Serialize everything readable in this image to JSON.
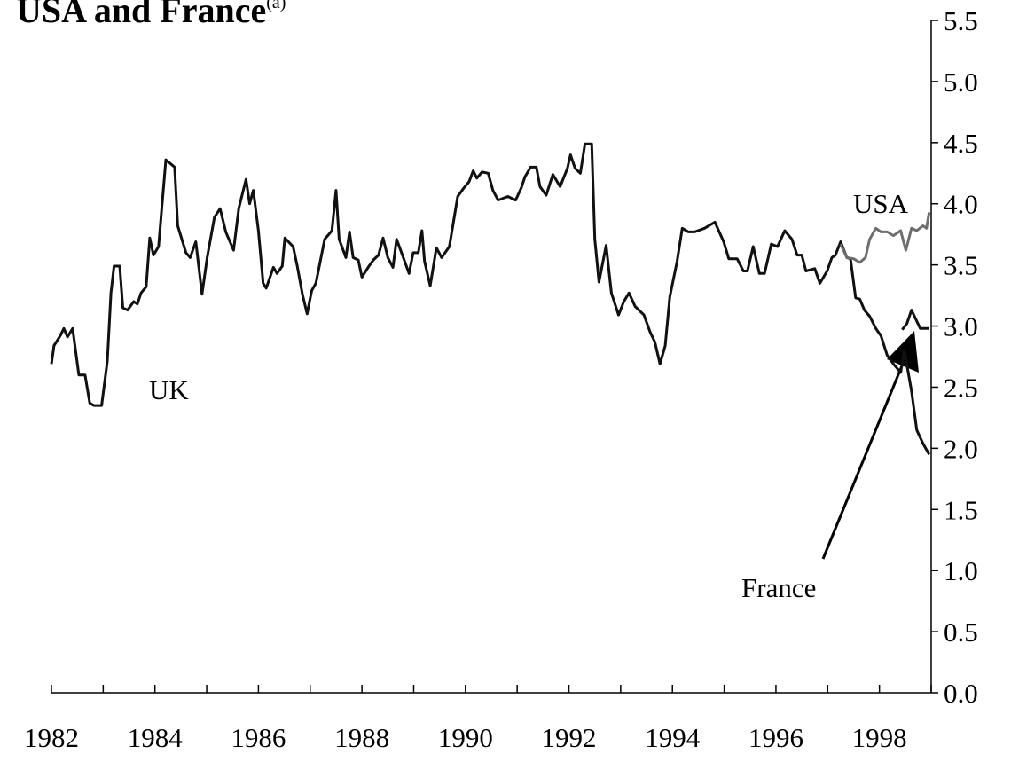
{
  "chart_data": {
    "type": "line",
    "title": "USA and France",
    "title_note": "(a)",
    "xlim": [
      1982,
      1999
    ],
    "xticks": [
      1982,
      1984,
      1986,
      1988,
      1990,
      1992,
      1994,
      1996,
      1998
    ],
    "ylim": [
      0,
      5.5
    ],
    "yticks": [
      {
        "value": 0,
        "label": "0.0"
      },
      0.5,
      {
        "value": 1,
        "label": "1.0"
      },
      1.5,
      {
        "value": 2,
        "label": "2.0"
      },
      2.5,
      {
        "value": 3,
        "label": "3.0"
      },
      3.5,
      {
        "value": 4,
        "label": "4.0"
      },
      4.5,
      {
        "value": 5,
        "label": "5.0"
      },
      5.5
    ],
    "annotations": [
      "UK",
      "USA",
      "France"
    ],
    "series": [
      {
        "name": "UK",
        "color": "#111111",
        "x": [
          1982.0,
          1982.05,
          1982.17,
          1982.24,
          1982.31,
          1982.41,
          1982.53,
          1982.65,
          1982.74,
          1982.82,
          1982.97,
          1983.08,
          1983.15,
          1983.21,
          1983.32,
          1983.38,
          1983.47,
          1983.59,
          1983.66,
          1983.73,
          1983.83,
          1983.9,
          1983.97,
          1984.07,
          1984.21,
          1984.38,
          1984.44,
          1984.6,
          1984.68,
          1984.79,
          1984.91,
          1985.01,
          1985.15,
          1985.26,
          1985.37,
          1985.52,
          1985.62,
          1985.76,
          1985.83,
          1985.9,
          1986.0,
          1986.09,
          1986.15,
          1986.29,
          1986.36,
          1986.46,
          1986.51,
          1986.67,
          1986.75,
          1986.85,
          1986.94,
          1987.03,
          1987.11,
          1987.28,
          1987.42,
          1987.5,
          1987.56,
          1987.69,
          1987.76,
          1987.83,
          1987.93,
          1988.0,
          1988.12,
          1988.22,
          1988.32,
          1988.41,
          1988.5,
          1988.6,
          1988.67,
          1988.8,
          1988.91,
          1988.99,
          1989.09,
          1989.16,
          1989.21,
          1989.32,
          1989.44,
          1989.54,
          1989.69,
          1989.85,
          1989.97,
          1990.07,
          1990.15,
          1990.22,
          1990.32,
          1990.44,
          1990.53,
          1990.63,
          1990.82,
          1990.97,
          1991.08,
          1991.15,
          1991.26,
          1991.37,
          1991.44,
          1991.56,
          1991.69,
          1991.83,
          1991.97,
          1992.03,
          1992.12,
          1992.22,
          1992.31,
          1992.44,
          1992.5,
          1992.58,
          1992.72,
          1992.82,
          1992.96,
          1993.06,
          1993.16,
          1993.28,
          1993.45,
          1993.57,
          1993.66,
          1993.76,
          1993.86,
          1993.95,
          1994.09,
          1994.19,
          1994.31,
          1994.43,
          1994.62,
          1994.82,
          1994.99,
          1995.09,
          1995.25,
          1995.37,
          1995.45,
          1995.56,
          1995.68,
          1995.78,
          1995.91,
          1996.03,
          1996.17,
          1996.31,
          1996.41,
          1996.5,
          1996.58,
          1996.75,
          1996.85,
          1996.99,
          1997.08,
          1997.15,
          1997.25,
          1997.37,
          1997.44,
          1997.54,
          1997.62,
          1997.71,
          1997.81,
          1997.93,
          1998.03,
          1998.15,
          1998.27,
          1998.41,
          1998.48,
          1998.62,
          1998.72,
          1998.84,
          1998.96
        ],
        "values": [
          2.69,
          2.84,
          2.92,
          2.98,
          2.91,
          2.98,
          2.6,
          2.6,
          2.37,
          2.35,
          2.35,
          2.71,
          3.27,
          3.49,
          3.49,
          3.15,
          3.13,
          3.2,
          3.18,
          3.27,
          3.32,
          3.72,
          3.58,
          3.65,
          4.36,
          4.3,
          3.82,
          3.6,
          3.56,
          3.69,
          3.26,
          3.56,
          3.89,
          3.96,
          3.77,
          3.62,
          3.96,
          4.2,
          4.0,
          4.11,
          3.78,
          3.35,
          3.31,
          3.48,
          3.43,
          3.49,
          3.72,
          3.65,
          3.49,
          3.26,
          3.1,
          3.29,
          3.35,
          3.71,
          3.78,
          4.11,
          3.71,
          3.56,
          3.77,
          3.56,
          3.54,
          3.4,
          3.48,
          3.54,
          3.58,
          3.72,
          3.56,
          3.48,
          3.71,
          3.56,
          3.43,
          3.6,
          3.6,
          3.78,
          3.53,
          3.33,
          3.64,
          3.56,
          3.65,
          4.06,
          4.13,
          4.18,
          4.27,
          4.21,
          4.26,
          4.25,
          4.11,
          4.03,
          4.06,
          4.03,
          4.13,
          4.22,
          4.3,
          4.3,
          4.14,
          4.07,
          4.24,
          4.14,
          4.29,
          4.4,
          4.29,
          4.25,
          4.49,
          4.49,
          3.71,
          3.36,
          3.66,
          3.27,
          3.09,
          3.2,
          3.27,
          3.16,
          3.09,
          2.95,
          2.87,
          2.69,
          2.84,
          3.24,
          3.53,
          3.8,
          3.77,
          3.77,
          3.8,
          3.85,
          3.69,
          3.55,
          3.55,
          3.45,
          3.45,
          3.65,
          3.43,
          3.43,
          3.67,
          3.65,
          3.78,
          3.71,
          3.58,
          3.58,
          3.45,
          3.47,
          3.35,
          3.45,
          3.56,
          3.58,
          3.69,
          3.56,
          3.55,
          3.23,
          3.22,
          3.13,
          3.08,
          2.98,
          2.92,
          2.76,
          2.69,
          2.62,
          2.8,
          2.47,
          2.15,
          2.04,
          1.95
        ]
      },
      {
        "name": "USA",
        "color": "#6e6e6e",
        "x": [
          1997.25,
          1997.37,
          1997.5,
          1997.62,
          1997.73,
          1997.81,
          1997.93,
          1998.03,
          1998.15,
          1998.27,
          1998.41,
          1998.51,
          1998.62,
          1998.72,
          1998.84,
          1998.91,
          1998.96
        ],
        "values": [
          3.67,
          3.56,
          3.55,
          3.52,
          3.56,
          3.71,
          3.8,
          3.77,
          3.77,
          3.74,
          3.78,
          3.62,
          3.8,
          3.78,
          3.82,
          3.8,
          3.93
        ]
      },
      {
        "name": "France",
        "color": "#111111",
        "x": [
          1998.44,
          1998.53,
          1998.62,
          1998.72,
          1998.79,
          1998.96
        ],
        "values": [
          2.97,
          3.02,
          3.13,
          3.04,
          2.98,
          2.98
        ]
      }
    ]
  }
}
